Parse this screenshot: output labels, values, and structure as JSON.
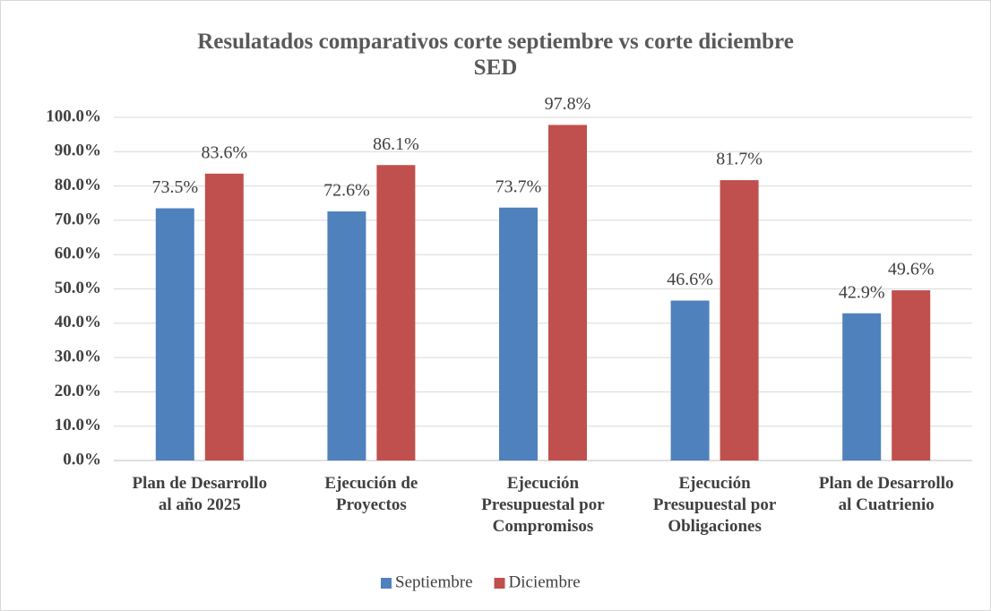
{
  "chart_data": {
    "type": "bar",
    "title": "Resulatados comparativos corte septiembre vs corte diciembre SED",
    "categories": [
      "Plan de Desarrollo al año 2025",
      "Ejecución de Proyectos",
      "Ejecución Presupuestal por Compromisos",
      "Ejecución Presupuestal por Obligaciones",
      "Plan de Desarrollo al Cuatrienio"
    ],
    "series": [
      {
        "name": "Septiembre",
        "color": "#4f81bd",
        "values": [
          73.5,
          72.6,
          73.7,
          46.6,
          42.9
        ],
        "value_labels": [
          "73.5%",
          "72.6%",
          "73.7%",
          "46.6%",
          "42.9%"
        ]
      },
      {
        "name": "Diciembre",
        "color": "#c0504d",
        "values": [
          83.6,
          86.1,
          97.8,
          81.7,
          49.6
        ],
        "value_labels": [
          "83.6%",
          "86.1%",
          "97.8%",
          "81.7%",
          "49.6%"
        ]
      }
    ],
    "ylim": [
      0,
      100
    ],
    "yticks": [
      {
        "value": 0,
        "label": "0.0%"
      },
      {
        "value": 10,
        "label": "10.0%"
      },
      {
        "value": 20,
        "label": "20.0%"
      },
      {
        "value": 30,
        "label": "30.0%"
      },
      {
        "value": 40,
        "label": "40.0%"
      },
      {
        "value": 50,
        "label": "50.0%"
      },
      {
        "value": 60,
        "label": "60.0%"
      },
      {
        "value": 70,
        "label": "70.0%"
      },
      {
        "value": 80,
        "label": "80.0%"
      },
      {
        "value": 90,
        "label": "90.0%"
      },
      {
        "value": 100,
        "label": "100.0%"
      }
    ],
    "grid": true,
    "legend": "bottom"
  }
}
